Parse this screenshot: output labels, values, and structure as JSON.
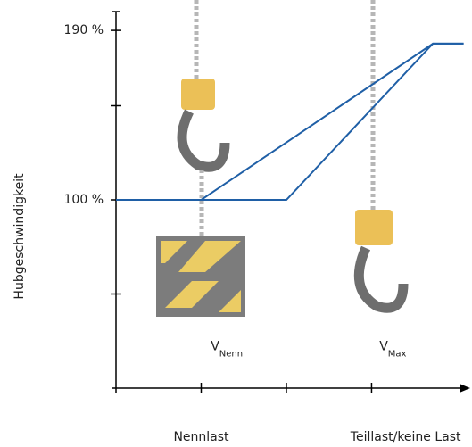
{
  "chart_data": {
    "type": "line",
    "y_label": "Hubgeschwindigkeit",
    "ylim": [
      0,
      200
    ],
    "yticks": [
      {
        "value": 100,
        "label": "100 %"
      },
      {
        "value": 190,
        "label": "190 %"
      }
    ],
    "minor_yticks": [
      50,
      150
    ],
    "xlim": [
      0,
      4.1
    ],
    "xticks": [
      1,
      2,
      3
    ],
    "categories": [
      {
        "x": 1,
        "label": "Nennlast"
      },
      {
        "x": 3.4,
        "label": "Teillast/keine Last"
      }
    ],
    "annotations": [
      {
        "x": 1.3,
        "y": 22,
        "text": "V",
        "sub": "Nenn"
      },
      {
        "x": 3.25,
        "y": 22,
        "text": "V",
        "sub": "Max"
      }
    ],
    "series": [
      {
        "color": "#1f5fa6",
        "x": [
          0,
          1,
          3.72,
          4.08
        ],
        "values": [
          100,
          100,
          183,
          183
        ]
      },
      {
        "color": "#1f5fa6",
        "x": [
          0,
          2,
          3.72,
          4.08
        ],
        "values": [
          100,
          100,
          183,
          183
        ]
      }
    ]
  }
}
